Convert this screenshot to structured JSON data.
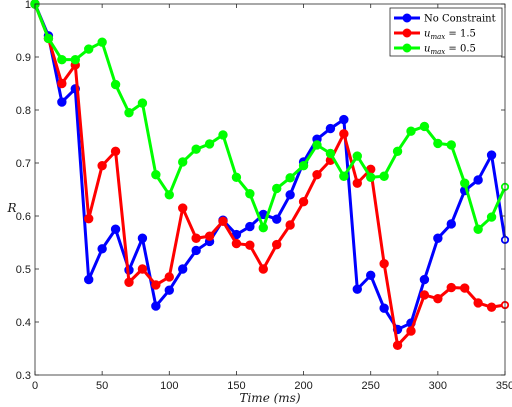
{
  "chart_data": {
    "type": "line",
    "title": "",
    "xlabel": "Time (ms)",
    "ylabel": "R",
    "xlim": [
      0,
      350
    ],
    "ylim": [
      0.3,
      1.0
    ],
    "xticks": [
      0,
      50,
      100,
      150,
      200,
      250,
      300,
      350
    ],
    "yticks": [
      0.3,
      0.4,
      0.5,
      0.6,
      0.7,
      0.8,
      0.9,
      1.0
    ],
    "xtick_labels": [
      "0",
      "50",
      "100",
      "150",
      "200",
      "250",
      "300",
      "350"
    ],
    "ytick_labels": [
      "0.3",
      "0.4",
      "0.5",
      "0.6",
      "0.7",
      "0.8",
      "0.9",
      "1"
    ],
    "grid": false,
    "legend_position": "top-right",
    "x": [
      0,
      10,
      20,
      30,
      40,
      50,
      60,
      70,
      80,
      90,
      100,
      110,
      120,
      130,
      140,
      150,
      160,
      170,
      180,
      190,
      200,
      210,
      220,
      230,
      240,
      250,
      260,
      270,
      280,
      290,
      300,
      310,
      320,
      330,
      340,
      350
    ],
    "series": [
      {
        "name": "No Constraint",
        "color": "#0000ff",
        "values": [
          1.0,
          0.94,
          0.815,
          0.84,
          0.48,
          0.538,
          0.575,
          0.498,
          0.558,
          0.43,
          0.46,
          0.5,
          0.535,
          0.552,
          0.592,
          0.565,
          0.58,
          0.603,
          0.594,
          0.64,
          0.702,
          0.745,
          0.765,
          0.782,
          0.462,
          0.488,
          0.426,
          0.386,
          0.398,
          0.48,
          0.558,
          0.585,
          0.648,
          0.668,
          0.715,
          0.555
        ]
      },
      {
        "name": "u_max = 1.5",
        "color": "#ff0000",
        "values": [
          1.0,
          0.935,
          0.85,
          0.885,
          0.595,
          0.695,
          0.722,
          0.475,
          0.5,
          0.47,
          0.485,
          0.615,
          0.558,
          0.562,
          0.59,
          0.548,
          0.545,
          0.5,
          0.546,
          0.583,
          0.627,
          0.678,
          0.705,
          0.755,
          0.662,
          0.688,
          0.51,
          0.356,
          0.383,
          0.451,
          0.444,
          0.465,
          0.464,
          0.436,
          0.428,
          0.432
        ]
      },
      {
        "name": "u_max = 0.5",
        "color": "#00ff00",
        "values": [
          1.0,
          0.935,
          0.895,
          0.895,
          0.915,
          0.928,
          0.848,
          0.795,
          0.813,
          0.678,
          0.64,
          0.702,
          0.726,
          0.736,
          0.753,
          0.673,
          0.642,
          0.578,
          0.652,
          0.672,
          0.695,
          0.734,
          0.718,
          0.675,
          0.713,
          0.673,
          0.675,
          0.722,
          0.76,
          0.769,
          0.737,
          0.734,
          0.662,
          0.575,
          0.598,
          0.655
        ]
      }
    ],
    "legend": {
      "entries": [
        {
          "text": "No Constraint",
          "style": "plain"
        },
        {
          "base": "u",
          "sub": "max",
          "rest": " = 1.5",
          "style": "math"
        },
        {
          "base": "u",
          "sub": "max",
          "rest": " = 0.5",
          "style": "math"
        }
      ]
    }
  }
}
